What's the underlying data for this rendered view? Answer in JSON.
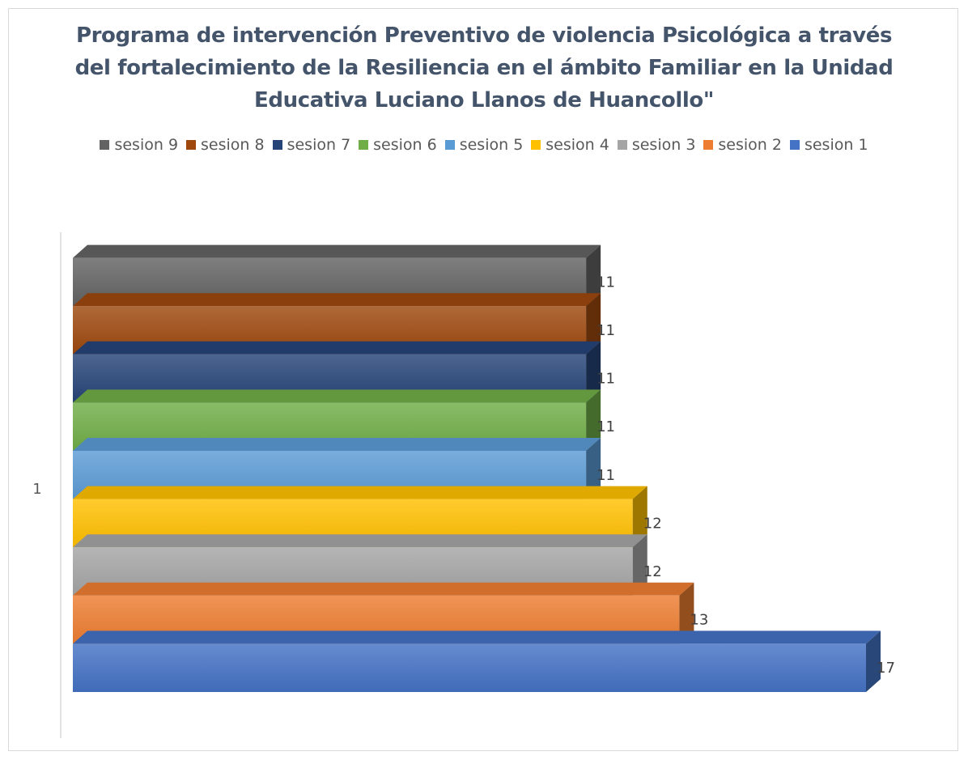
{
  "chart_data": {
    "type": "bar",
    "orientation": "horizontal",
    "style": "3d-stacked-bars",
    "title_lines": [
      "Programa de intervención Preventivo de violencia Psicológica a través",
      "del fortalecimiento de la Resiliencia en el ámbito Familiar en la Unidad",
      "Educativa Luciano Llanos de Huancollo\""
    ],
    "categories": [
      "1"
    ],
    "series": [
      {
        "name": "sesion 1",
        "values": [
          17
        ],
        "color": "#4472c4"
      },
      {
        "name": "sesion 2",
        "values": [
          13
        ],
        "color": "#ed7d31"
      },
      {
        "name": "sesion 3",
        "values": [
          12
        ],
        "color": "#a5a5a5"
      },
      {
        "name": "sesion 4",
        "values": [
          12
        ],
        "color": "#ffc000"
      },
      {
        "name": "sesion 5",
        "values": [
          11
        ],
        "color": "#5b9bd5"
      },
      {
        "name": "sesion 6",
        "values": [
          11
        ],
        "color": "#70ad47"
      },
      {
        "name": "sesion 7",
        "values": [
          11
        ],
        "color": "#264478"
      },
      {
        "name": "sesion 8",
        "values": [
          11
        ],
        "color": "#9e480e"
      },
      {
        "name": "sesion 9",
        "values": [
          11
        ],
        "color": "#636363"
      }
    ],
    "legend_order": [
      "sesion 9",
      "sesion 8",
      "sesion 7",
      "sesion 6",
      "sesion 5",
      "sesion 4",
      "sesion 3",
      "sesion 2",
      "sesion 1"
    ],
    "legend_position": "top",
    "xlim": [
      0,
      17
    ],
    "grid": false,
    "data_labels": true
  }
}
